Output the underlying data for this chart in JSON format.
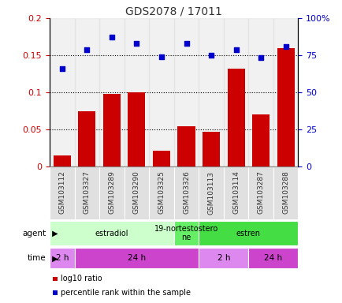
{
  "title": "GDS2078 / 17011",
  "samples": [
    "GSM103112",
    "GSM103327",
    "GSM103289",
    "GSM103290",
    "GSM103325",
    "GSM103326",
    "GSM103113",
    "GSM103114",
    "GSM103287",
    "GSM103288"
  ],
  "log10_ratio": [
    0.015,
    0.075,
    0.098,
    0.1,
    0.022,
    0.054,
    0.047,
    0.132,
    0.07,
    0.16
  ],
  "percentile_rank_pct": [
    66,
    78.5,
    87.5,
    83,
    74,
    83,
    75,
    79,
    73.5,
    81
  ],
  "bar_color": "#cc0000",
  "dot_color": "#0000cc",
  "left_ylim": [
    0,
    0.2
  ],
  "right_ylim": [
    0,
    100
  ],
  "left_yticks": [
    0,
    0.05,
    0.1,
    0.15,
    0.2
  ],
  "left_yticklabels": [
    "0",
    "0.05",
    "0.1",
    "0.15",
    "0.2"
  ],
  "right_yticks": [
    0,
    25,
    50,
    75,
    100
  ],
  "right_yticklabels": [
    "0",
    "25",
    "50",
    "75",
    "100%"
  ],
  "hlines": [
    0.05,
    0.1,
    0.15
  ],
  "agent_groups": [
    {
      "label": "estradiol",
      "start": 0,
      "end": 5,
      "color": "#ccffcc"
    },
    {
      "label": "19-nortestostero\nne",
      "start": 5,
      "end": 6,
      "color": "#66ee66"
    },
    {
      "label": "estren",
      "start": 6,
      "end": 10,
      "color": "#44dd44"
    }
  ],
  "time_groups": [
    {
      "label": "2 h",
      "start": 0,
      "end": 1,
      "color": "#dd88ee"
    },
    {
      "label": "24 h",
      "start": 1,
      "end": 6,
      "color": "#cc44cc"
    },
    {
      "label": "2 h",
      "start": 6,
      "end": 8,
      "color": "#dd88ee"
    },
    {
      "label": "24 h",
      "start": 8,
      "end": 10,
      "color": "#cc44cc"
    }
  ],
  "legend_items": [
    {
      "label": "log10 ratio",
      "color": "#cc0000"
    },
    {
      "label": "percentile rank within the sample",
      "color": "#0000cc"
    }
  ],
  "bg_color": "#ffffff",
  "tick_label_color_left": "#cc0000",
  "tick_label_color_right": "#0000cc",
  "grid_color": "#000000",
  "col_bg_color": "#e0e0e0",
  "label_left": "agent",
  "label_time": "time"
}
